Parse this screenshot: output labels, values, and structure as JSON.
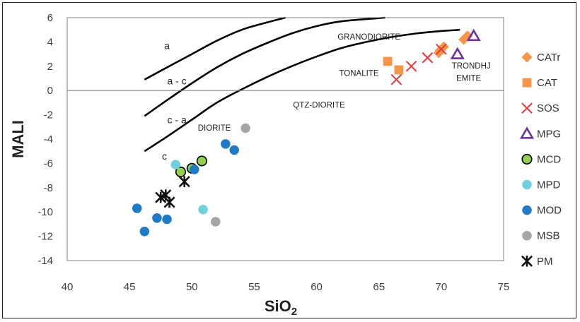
{
  "chart_data": {
    "type": "scatter",
    "xlabel_main": "SiO",
    "xlabel_sub": "2",
    "ylabel": "MALI",
    "xlim": [
      40,
      75
    ],
    "ylim": [
      -14,
      6
    ],
    "xticks": [
      "40",
      "45",
      "50",
      "55",
      "60",
      "65",
      "70",
      "75"
    ],
    "yticks": [
      "6",
      "4",
      "2",
      "0",
      "-2",
      "-4",
      "-6",
      "-8",
      "-10",
      "-12",
      "-14"
    ],
    "grid": false,
    "legend_position": "right",
    "boundaries": [
      {
        "name": "a / a-c",
        "points": [
          [
            46.2,
            0.9
          ],
          [
            48,
            1.9
          ],
          [
            50,
            3.0
          ],
          [
            52,
            4.1
          ],
          [
            54,
            5.0
          ],
          [
            56,
            5.6
          ],
          [
            57.5,
            6.0
          ]
        ]
      },
      {
        "name": "a-c / c-a",
        "points": [
          [
            46.2,
            -2.1
          ],
          [
            48,
            -0.8
          ],
          [
            50,
            0.6
          ],
          [
            52,
            1.9
          ],
          [
            54,
            3.0
          ],
          [
            56,
            3.9
          ],
          [
            58,
            4.7
          ],
          [
            60,
            5.3
          ],
          [
            62,
            5.7
          ],
          [
            65.5,
            6.0
          ]
        ]
      },
      {
        "name": "c-a / c",
        "points": [
          [
            46.2,
            -5.0
          ],
          [
            48,
            -3.8
          ],
          [
            50,
            -2.4
          ],
          [
            52,
            -1.0
          ],
          [
            54,
            0.1
          ],
          [
            56,
            1.1
          ],
          [
            58,
            2.0
          ],
          [
            60,
            2.8
          ],
          [
            62,
            3.5
          ],
          [
            64,
            4.0
          ],
          [
            66,
            4.4
          ],
          [
            68,
            4.7
          ],
          [
            70,
            4.9
          ],
          [
            71.5,
            5.0
          ]
        ]
      }
    ],
    "curve_labels": [
      {
        "text": "a",
        "x": 48,
        "y": 3.4
      },
      {
        "text": "a - c",
        "x": 48.8,
        "y": 0.5
      },
      {
        "text": "c - a",
        "x": 48.8,
        "y": -2.7
      },
      {
        "text": "c",
        "x": 47.8,
        "y": -5.7
      }
    ],
    "field_labels": [
      {
        "text": "GRANODIORITE",
        "x": 64.2,
        "y": 4.2
      },
      {
        "text": "TONALITE",
        "x": 63.4,
        "y": 1.2
      },
      {
        "text": "TRONDHJ",
        "x": 72.4,
        "y": 1.8
      },
      {
        "text": "EMITE",
        "x": 72.2,
        "y": 0.8
      },
      {
        "text": "QTZ-DIORITE",
        "x": 60.2,
        "y": -1.4
      },
      {
        "text": "DIORITE",
        "x": 51.8,
        "y": -3.3
      }
    ],
    "series": [
      {
        "name": "CATr",
        "marker": "diamond",
        "color": "#F79646",
        "points": [
          [
            69.8,
            3.1
          ],
          [
            70.2,
            3.6
          ],
          [
            69.9,
            3.3
          ],
          [
            71.8,
            4.2
          ],
          [
            72.1,
            4.5
          ]
        ]
      },
      {
        "name": "CAT",
        "marker": "square",
        "color": "#F79646",
        "points": [
          [
            65.7,
            2.4
          ],
          [
            66.6,
            1.7
          ]
        ]
      },
      {
        "name": "SOS",
        "marker": "x",
        "color": "#E8343C",
        "points": [
          [
            66.4,
            0.9
          ],
          [
            67.6,
            2.0
          ],
          [
            68.9,
            2.7
          ],
          [
            70.0,
            3.4
          ]
        ]
      },
      {
        "name": "MPG",
        "marker": "triangle",
        "color": "#7030A0",
        "points": [
          [
            71.3,
            3.0
          ],
          [
            72.6,
            4.5
          ]
        ]
      },
      {
        "name": "MCD",
        "marker": "circle-outline",
        "color": "#92D050",
        "points": [
          [
            49.1,
            -6.7
          ],
          [
            50.0,
            -6.4
          ],
          [
            50.8,
            -5.8
          ]
        ]
      },
      {
        "name": "MPD",
        "marker": "circle",
        "color": "#6FD0E0",
        "points": [
          [
            48.7,
            -6.1
          ],
          [
            50.9,
            -9.8
          ]
        ]
      },
      {
        "name": "MOD",
        "marker": "circle",
        "color": "#1F7BC8",
        "points": [
          [
            45.6,
            -9.7
          ],
          [
            46.2,
            -11.6
          ],
          [
            47.2,
            -10.5
          ],
          [
            48.0,
            -10.6
          ],
          [
            50.2,
            -6.5
          ],
          [
            52.7,
            -4.4
          ],
          [
            53.4,
            -4.9
          ]
        ]
      },
      {
        "name": "MSB",
        "marker": "circle",
        "color": "#A6A6A6",
        "points": [
          [
            51.9,
            -10.8
          ],
          [
            54.3,
            -3.1
          ]
        ]
      },
      {
        "name": "PM",
        "marker": "star",
        "color": "#111111",
        "points": [
          [
            47.5,
            -8.8
          ],
          [
            47.9,
            -8.6
          ],
          [
            48.2,
            -9.2
          ],
          [
            49.4,
            -7.5
          ]
        ]
      }
    ]
  }
}
